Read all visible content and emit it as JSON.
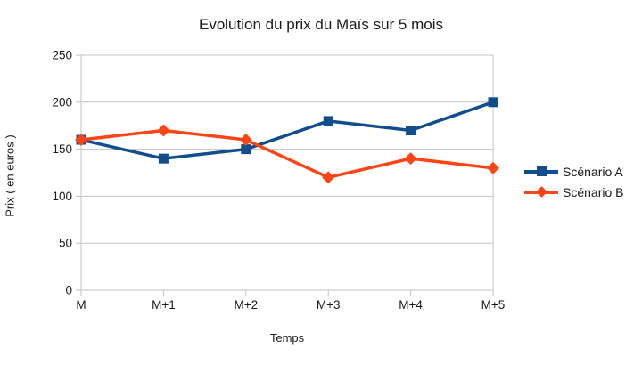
{
  "chart_data": {
    "type": "line",
    "title": "Evolution du prix du Maïs sur 5 mois",
    "xlabel": "Temps",
    "ylabel": "Prix ( en euros )",
    "categories": [
      "M",
      "M+1",
      "M+2",
      "M+3",
      "M+4",
      "M+5"
    ],
    "series": [
      {
        "name": "Scénario A",
        "color": "#124d8d",
        "marker": "square",
        "values": [
          160,
          140,
          150,
          180,
          170,
          200
        ]
      },
      {
        "name": "Scénario B",
        "color": "#fb4516",
        "marker": "diamond",
        "values": [
          160,
          170,
          160,
          120,
          140,
          130
        ]
      }
    ],
    "ylim": [
      0,
      250
    ],
    "yticks": [
      0,
      50,
      100,
      150,
      200,
      250
    ],
    "grid": "horizontal",
    "legend_position": "right"
  },
  "style_colors": {
    "grid": "#c3c3c3",
    "tick_text": "#1a1a1a",
    "background": "#ffffff"
  }
}
